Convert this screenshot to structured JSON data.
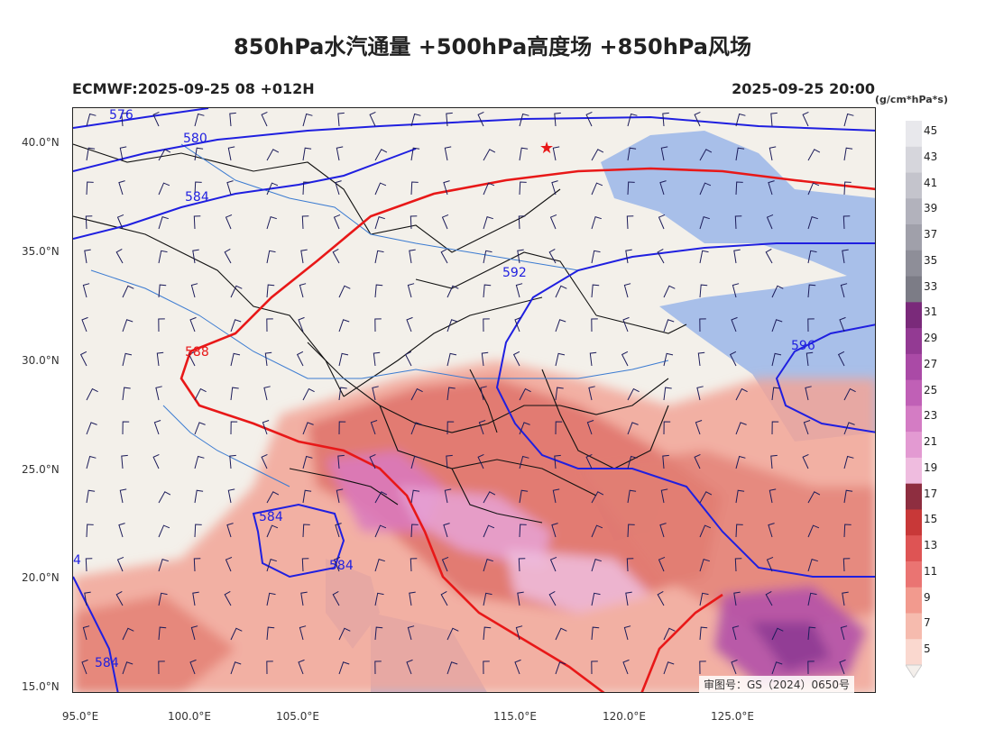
{
  "header": {
    "title": "850hPa水汽通量 +500hPa高度场 +850hPa风场",
    "model_run": "ECMWF:2025-09-25 08 +012H",
    "valid_time": "2025-09-25 20:00",
    "units": "(g/cm*hPa*s)"
  },
  "axes": {
    "lat_labels": [
      "40.0°N",
      "35.0°N",
      "30.0°N",
      "25.0°N",
      "20.0°N",
      "15.0°N"
    ],
    "lon_labels": [
      "95.0°E",
      "100.0°E",
      "105.0°E",
      "",
      "115.0°E",
      "120.0°E",
      "125.0°E"
    ]
  },
  "contours": {
    "labels": [
      "576",
      "580",
      "584",
      "592",
      "588",
      "596",
      "584",
      "584",
      "584",
      "4"
    ],
    "line_color": "#1f1fe0",
    "line_588_color": "#e81818"
  },
  "colorbar": {
    "levels": [
      "45",
      "43",
      "41",
      "39",
      "37",
      "35",
      "33",
      "31",
      "29",
      "27",
      "25",
      "23",
      "21",
      "19",
      "17",
      "15",
      "13",
      "11",
      "9",
      "7",
      "5"
    ],
    "colors": [
      "#e8e8ec",
      "#d6d6dc",
      "#c4c4cc",
      "#b2b2bc",
      "#a0a0aa",
      "#8e8e98",
      "#7c7c86",
      "#7a2a7a",
      "#933a93",
      "#aa4aa6",
      "#c060b6",
      "#d47cc4",
      "#e39ad2",
      "#efbcdf",
      "#8e2e40",
      "#c83838",
      "#de5454",
      "#ea7472",
      "#f29a8e",
      "#f6bbae",
      "#fad8cf"
    ]
  },
  "review_number": "审图号：GS（2024）0650号"
}
